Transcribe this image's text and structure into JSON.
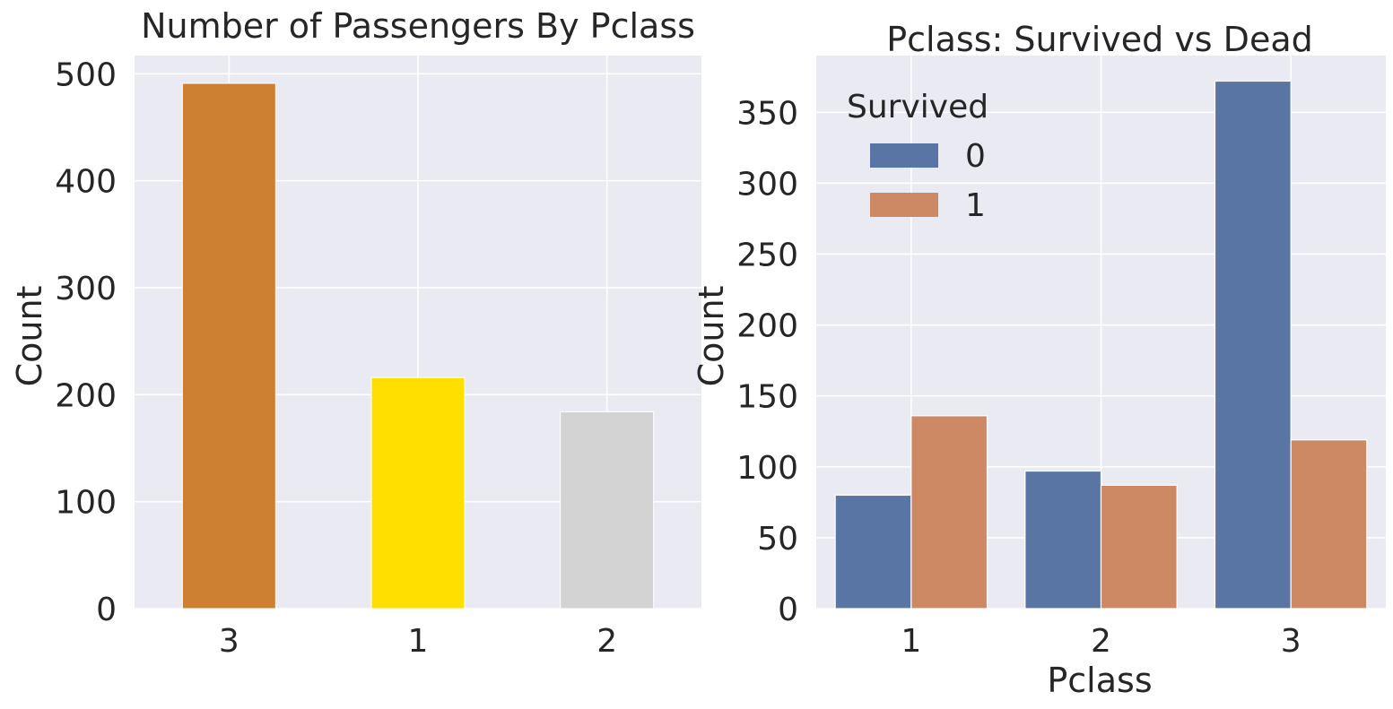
{
  "chart_data": [
    {
      "type": "bar",
      "title": "Number of Passengers By Pclass",
      "xlabel": "",
      "ylabel": "Count",
      "categories": [
        "3",
        "1",
        "2"
      ],
      "values": [
        491,
        216,
        184
      ],
      "colors": [
        "#cd7f32",
        "#ffdf00",
        "#d3d3d3"
      ],
      "ylim": [
        0,
        517
      ],
      "yticks": [
        "0",
        "100",
        "200",
        "300",
        "400",
        "500"
      ],
      "ytick_values": [
        0,
        100,
        200,
        300,
        400,
        500
      ],
      "grid": true
    },
    {
      "type": "bar",
      "title": "Pclass: Survived vs Dead",
      "xlabel": "Pclass",
      "ylabel": "Count",
      "categories": [
        "1",
        "2",
        "3"
      ],
      "series": [
        {
          "name": "0",
          "values": [
            80,
            97,
            372
          ],
          "color": "#5975a4"
        },
        {
          "name": "1",
          "values": [
            136,
            87,
            119
          ],
          "color": "#cc8963"
        }
      ],
      "legend": {
        "title": "Survived",
        "placement": "top-left"
      },
      "ylim": [
        0,
        390
      ],
      "yticks": [
        "0",
        "50",
        "100",
        "150",
        "200",
        "250",
        "300",
        "350"
      ],
      "ytick_values": [
        0,
        50,
        100,
        150,
        200,
        250,
        300,
        350
      ],
      "grid": true
    }
  ]
}
